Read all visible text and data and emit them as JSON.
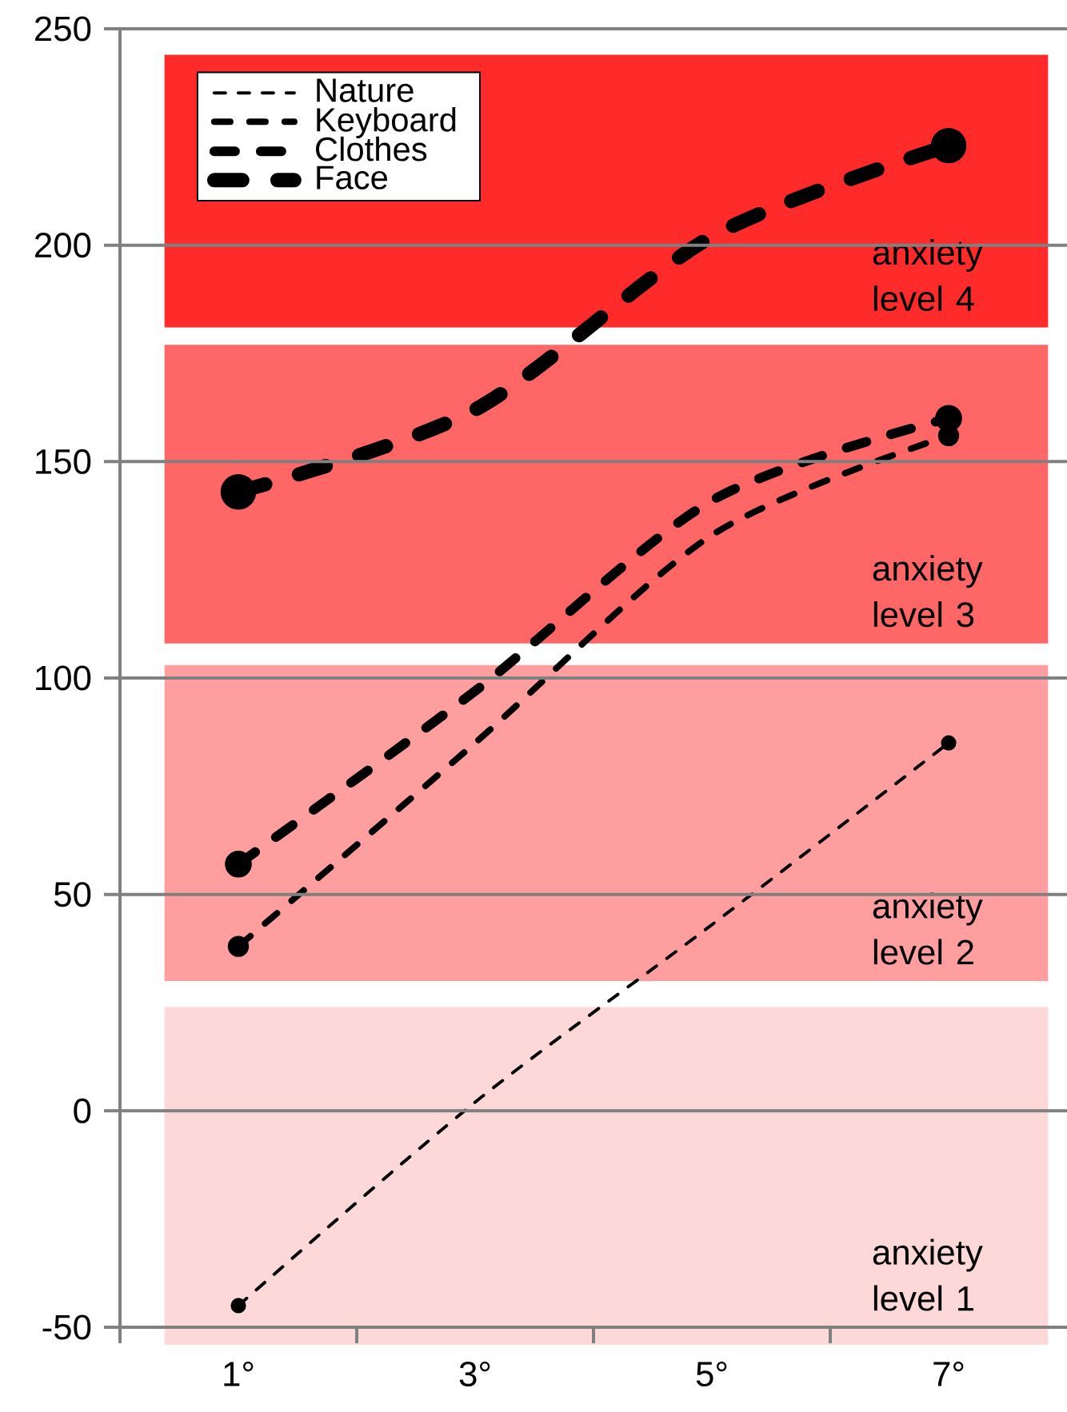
{
  "chart_data": {
    "type": "line",
    "categories": [
      "1°",
      "3°",
      "5°",
      "7°"
    ],
    "series": [
      {
        "name": "Nature",
        "color": "#000000",
        "values": [
          -45,
          2,
          43,
          85
        ]
      },
      {
        "name": "Keyboard",
        "color": "#000000",
        "values": [
          38,
          85,
          133,
          156
        ]
      },
      {
        "name": "Clothes",
        "color": "#000000",
        "values": [
          57,
          97,
          141,
          160
        ]
      },
      {
        "name": "Face",
        "color": "#000000",
        "values": [
          143,
          162,
          202,
          223
        ]
      }
    ],
    "ylim": [
      -50,
      250
    ],
    "yticks": [
      -50,
      0,
      50,
      100,
      150,
      200,
      250
    ],
    "bands": [
      {
        "axis": "y",
        "from": 181,
        "to": 244,
        "label": "anxiety level 4",
        "color": "#ff2a2a"
      },
      {
        "axis": "y",
        "from": 108,
        "to": 177,
        "label": "anxiety level 3",
        "color": "#ff6666"
      },
      {
        "axis": "y",
        "from": 30,
        "to": 103,
        "label": "anxiety level 2",
        "color": "#ff9e9e"
      },
      {
        "axis": "y",
        "from": -54,
        "to": 24,
        "label": "anxiety level 1",
        "color": "#fdd8d8"
      }
    ],
    "grid": "y",
    "legend": "top left",
    "marker": "circle",
    "line_style": "dashed"
  }
}
